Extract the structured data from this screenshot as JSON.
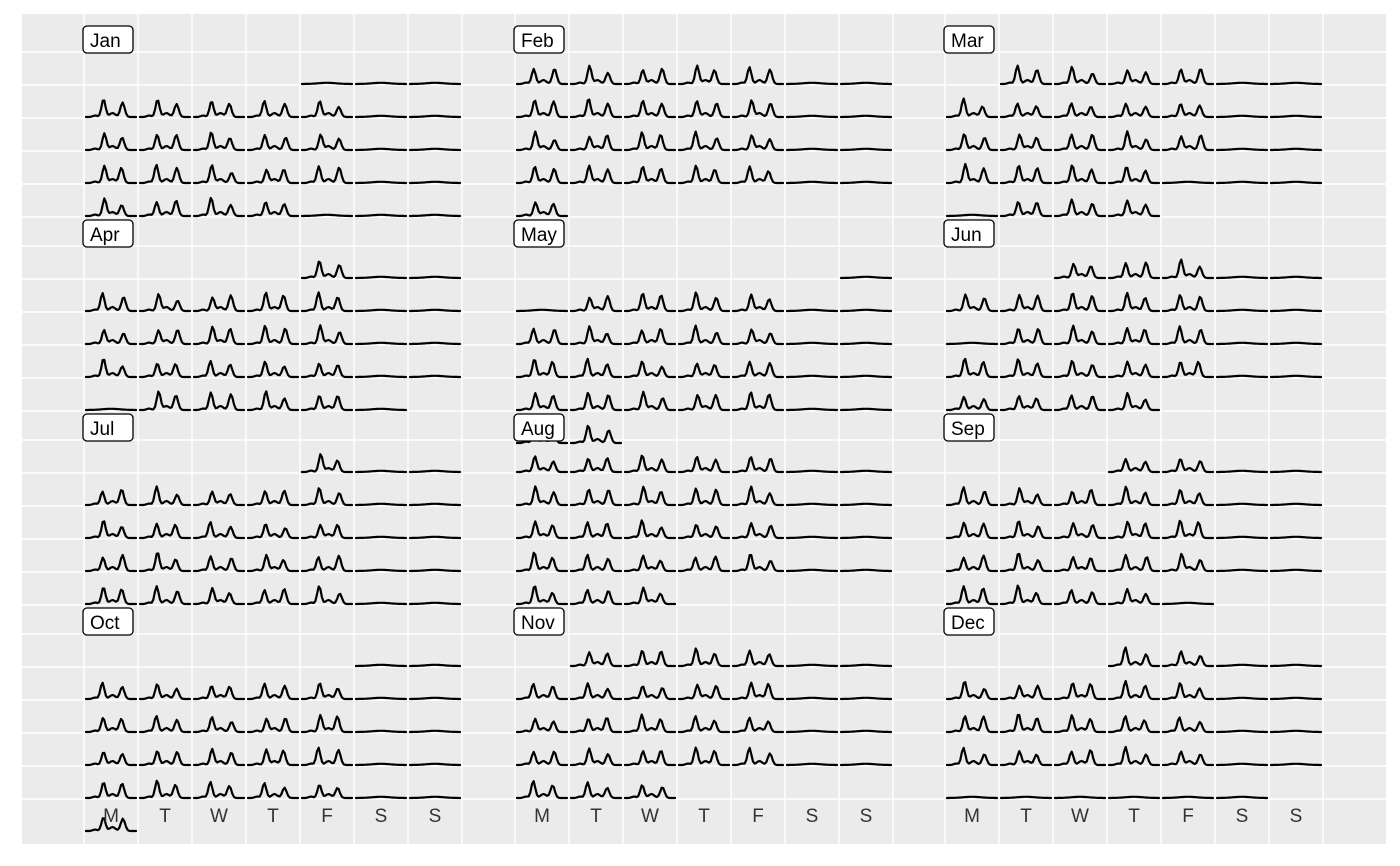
{
  "chart_data": {
    "type": "line",
    "title": "",
    "xlabel": "",
    "ylabel": "",
    "grid": true,
    "layout": "calendar",
    "weekday_labels": [
      "M",
      "T",
      "W",
      "T",
      "F",
      "S",
      "S"
    ],
    "months": [
      {
        "label": "Jan",
        "first_weekday": 4,
        "days": 31,
        "quiet_days": [
          1,
          24,
          29,
          30,
          31
        ]
      },
      {
        "label": "Feb",
        "first_weekday": 0,
        "days": 29,
        "quiet_days": []
      },
      {
        "label": "Mar",
        "first_weekday": 1,
        "days": 31,
        "quiet_days": [
          13,
          25,
          28
        ]
      },
      {
        "label": "Apr",
        "first_weekday": 4,
        "days": 30,
        "quiet_days": [
          25
        ]
      },
      {
        "label": "May",
        "first_weekday": 6,
        "days": 31,
        "quiet_days": [
          1,
          2
        ]
      },
      {
        "label": "Jun",
        "first_weekday": 2,
        "days": 30,
        "quiet_days": [
          13
        ]
      },
      {
        "label": "Jul",
        "first_weekday": 4,
        "days": 31,
        "quiet_days": []
      },
      {
        "label": "Aug",
        "first_weekday": 0,
        "days": 31,
        "quiet_days": []
      },
      {
        "label": "Sep",
        "first_weekday": 3,
        "days": 30,
        "quiet_days": [
          30
        ]
      },
      {
        "label": "Oct",
        "first_weekday": 5,
        "days": 31,
        "quiet_days": []
      },
      {
        "label": "Nov",
        "first_weekday": 1,
        "days": 30,
        "quiet_days": []
      },
      {
        "label": "Dec",
        "first_weekday": 3,
        "days": 31,
        "quiet_days": [
          26,
          27,
          28,
          29,
          30,
          31
        ]
      }
    ],
    "colors": {
      "panel_bg": "#ebebeb",
      "grid": "#ffffff",
      "line": "#000000",
      "strip_border": "#000000"
    }
  }
}
